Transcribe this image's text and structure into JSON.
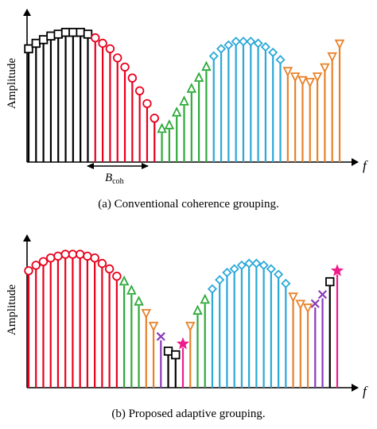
{
  "panels": [
    {
      "caption": "(a) Conventional coherence grouping.",
      "ylabel": "Amplitude",
      "xlabel": "f",
      "bandwidth_label_main": "B",
      "bandwidth_label_sub": "coh",
      "stems": [
        {
          "h": 0.62,
          "m": "square",
          "c": "#000000"
        },
        {
          "h": 0.65,
          "m": "square",
          "c": "#000000"
        },
        {
          "h": 0.67,
          "m": "square",
          "c": "#000000"
        },
        {
          "h": 0.69,
          "m": "square",
          "c": "#000000"
        },
        {
          "h": 0.7,
          "m": "square",
          "c": "#000000"
        },
        {
          "h": 0.71,
          "m": "square",
          "c": "#000000"
        },
        {
          "h": 0.71,
          "m": "square",
          "c": "#000000"
        },
        {
          "h": 0.71,
          "m": "square",
          "c": "#000000"
        },
        {
          "h": 0.7,
          "m": "square",
          "c": "#000000"
        },
        {
          "h": 0.68,
          "m": "circle",
          "c": "#e8001c"
        },
        {
          "h": 0.65,
          "m": "circle",
          "c": "#e8001c"
        },
        {
          "h": 0.62,
          "m": "circle",
          "c": "#e8001c"
        },
        {
          "h": 0.57,
          "m": "circle",
          "c": "#e8001c"
        },
        {
          "h": 0.52,
          "m": "circle",
          "c": "#e8001c"
        },
        {
          "h": 0.46,
          "m": "circle",
          "c": "#e8001c"
        },
        {
          "h": 0.39,
          "m": "circle",
          "c": "#e8001c"
        },
        {
          "h": 0.32,
          "m": "circle",
          "c": "#e8001c"
        },
        {
          "h": 0.24,
          "m": "circle",
          "c": "#e8001c"
        },
        {
          "h": 0.18,
          "m": "triangle-up",
          "c": "#2eaa3a"
        },
        {
          "h": 0.2,
          "m": "triangle-up",
          "c": "#2eaa3a"
        },
        {
          "h": 0.27,
          "m": "triangle-up",
          "c": "#2eaa3a"
        },
        {
          "h": 0.33,
          "m": "triangle-up",
          "c": "#2eaa3a"
        },
        {
          "h": 0.4,
          "m": "triangle-up",
          "c": "#2eaa3a"
        },
        {
          "h": 0.46,
          "m": "triangle-up",
          "c": "#2eaa3a"
        },
        {
          "h": 0.52,
          "m": "triangle-up",
          "c": "#2eaa3a"
        },
        {
          "h": 0.58,
          "m": "diamond",
          "c": "#2aa8d8"
        },
        {
          "h": 0.62,
          "m": "diamond",
          "c": "#2aa8d8"
        },
        {
          "h": 0.64,
          "m": "diamond",
          "c": "#2aa8d8"
        },
        {
          "h": 0.66,
          "m": "diamond",
          "c": "#2aa8d8"
        },
        {
          "h": 0.66,
          "m": "diamond",
          "c": "#2aa8d8"
        },
        {
          "h": 0.66,
          "m": "diamond",
          "c": "#2aa8d8"
        },
        {
          "h": 0.65,
          "m": "diamond",
          "c": "#2aa8d8"
        },
        {
          "h": 0.63,
          "m": "diamond",
          "c": "#2aa8d8"
        },
        {
          "h": 0.6,
          "m": "diamond",
          "c": "#2aa8d8"
        },
        {
          "h": 0.56,
          "m": "diamond",
          "c": "#2aa8d8"
        },
        {
          "h": 0.5,
          "m": "triangle-down",
          "c": "#e8822a"
        },
        {
          "h": 0.47,
          "m": "triangle-down",
          "c": "#e8822a"
        },
        {
          "h": 0.45,
          "m": "triangle-down",
          "c": "#e8822a"
        },
        {
          "h": 0.44,
          "m": "triangle-down",
          "c": "#e8822a"
        },
        {
          "h": 0.47,
          "m": "triangle-down",
          "c": "#e8822a"
        },
        {
          "h": 0.52,
          "m": "triangle-down",
          "c": "#e8822a"
        },
        {
          "h": 0.58,
          "m": "triangle-down",
          "c": "#e8822a"
        },
        {
          "h": 0.65,
          "m": "triangle-down",
          "c": "#e8822a"
        }
      ]
    },
    {
      "caption": "(b) Proposed adaptive grouping.",
      "ylabel": "Amplitude",
      "xlabel": "f",
      "stems": [
        {
          "h": 0.64,
          "m": "circle",
          "c": "#e8001c"
        },
        {
          "h": 0.67,
          "m": "circle",
          "c": "#e8001c"
        },
        {
          "h": 0.69,
          "m": "circle",
          "c": "#e8001c"
        },
        {
          "h": 0.71,
          "m": "circle",
          "c": "#e8001c"
        },
        {
          "h": 0.72,
          "m": "circle",
          "c": "#e8001c"
        },
        {
          "h": 0.73,
          "m": "circle",
          "c": "#e8001c"
        },
        {
          "h": 0.73,
          "m": "circle",
          "c": "#e8001c"
        },
        {
          "h": 0.73,
          "m": "circle",
          "c": "#e8001c"
        },
        {
          "h": 0.72,
          "m": "circle",
          "c": "#e8001c"
        },
        {
          "h": 0.71,
          "m": "circle",
          "c": "#e8001c"
        },
        {
          "h": 0.68,
          "m": "circle",
          "c": "#e8001c"
        },
        {
          "h": 0.65,
          "m": "circle",
          "c": "#e8001c"
        },
        {
          "h": 0.61,
          "m": "circle",
          "c": "#e8001c"
        },
        {
          "h": 0.58,
          "m": "triangle-up",
          "c": "#2eaa3a"
        },
        {
          "h": 0.53,
          "m": "triangle-up",
          "c": "#2eaa3a"
        },
        {
          "h": 0.47,
          "m": "triangle-up",
          "c": "#2eaa3a"
        },
        {
          "h": 0.41,
          "m": "triangle-down",
          "c": "#e8822a"
        },
        {
          "h": 0.34,
          "m": "triangle-down",
          "c": "#e8822a"
        },
        {
          "h": 0.28,
          "m": "cross",
          "c": "#8a3ab9"
        },
        {
          "h": 0.2,
          "m": "square",
          "c": "#000000"
        },
        {
          "h": 0.18,
          "m": "square",
          "c": "#000000"
        },
        {
          "h": 0.24,
          "m": "star",
          "c": "#ee1c8c"
        },
        {
          "h": 0.34,
          "m": "triangle-down",
          "c": "#e8822a"
        },
        {
          "h": 0.42,
          "m": "triangle-up",
          "c": "#2eaa3a"
        },
        {
          "h": 0.48,
          "m": "triangle-up",
          "c": "#2eaa3a"
        },
        {
          "h": 0.54,
          "m": "diamond",
          "c": "#2aa8d8"
        },
        {
          "h": 0.59,
          "m": "diamond",
          "c": "#2aa8d8"
        },
        {
          "h": 0.63,
          "m": "diamond",
          "c": "#2aa8d8"
        },
        {
          "h": 0.65,
          "m": "diamond",
          "c": "#2aa8d8"
        },
        {
          "h": 0.67,
          "m": "diamond",
          "c": "#2aa8d8"
        },
        {
          "h": 0.68,
          "m": "diamond",
          "c": "#2aa8d8"
        },
        {
          "h": 0.68,
          "m": "diamond",
          "c": "#2aa8d8"
        },
        {
          "h": 0.67,
          "m": "diamond",
          "c": "#2aa8d8"
        },
        {
          "h": 0.65,
          "m": "diamond",
          "c": "#2aa8d8"
        },
        {
          "h": 0.62,
          "m": "diamond",
          "c": "#2aa8d8"
        },
        {
          "h": 0.57,
          "m": "diamond",
          "c": "#2aa8d8"
        },
        {
          "h": 0.5,
          "m": "triangle-down",
          "c": "#e8822a"
        },
        {
          "h": 0.46,
          "m": "triangle-down",
          "c": "#e8822a"
        },
        {
          "h": 0.44,
          "m": "triangle-down",
          "c": "#e8822a"
        },
        {
          "h": 0.46,
          "m": "cross",
          "c": "#8a3ab9"
        },
        {
          "h": 0.51,
          "m": "cross",
          "c": "#8a3ab9"
        },
        {
          "h": 0.58,
          "m": "square",
          "c": "#000000"
        },
        {
          "h": 0.64,
          "m": "star",
          "c": "#ee1c8c"
        }
      ]
    }
  ]
}
